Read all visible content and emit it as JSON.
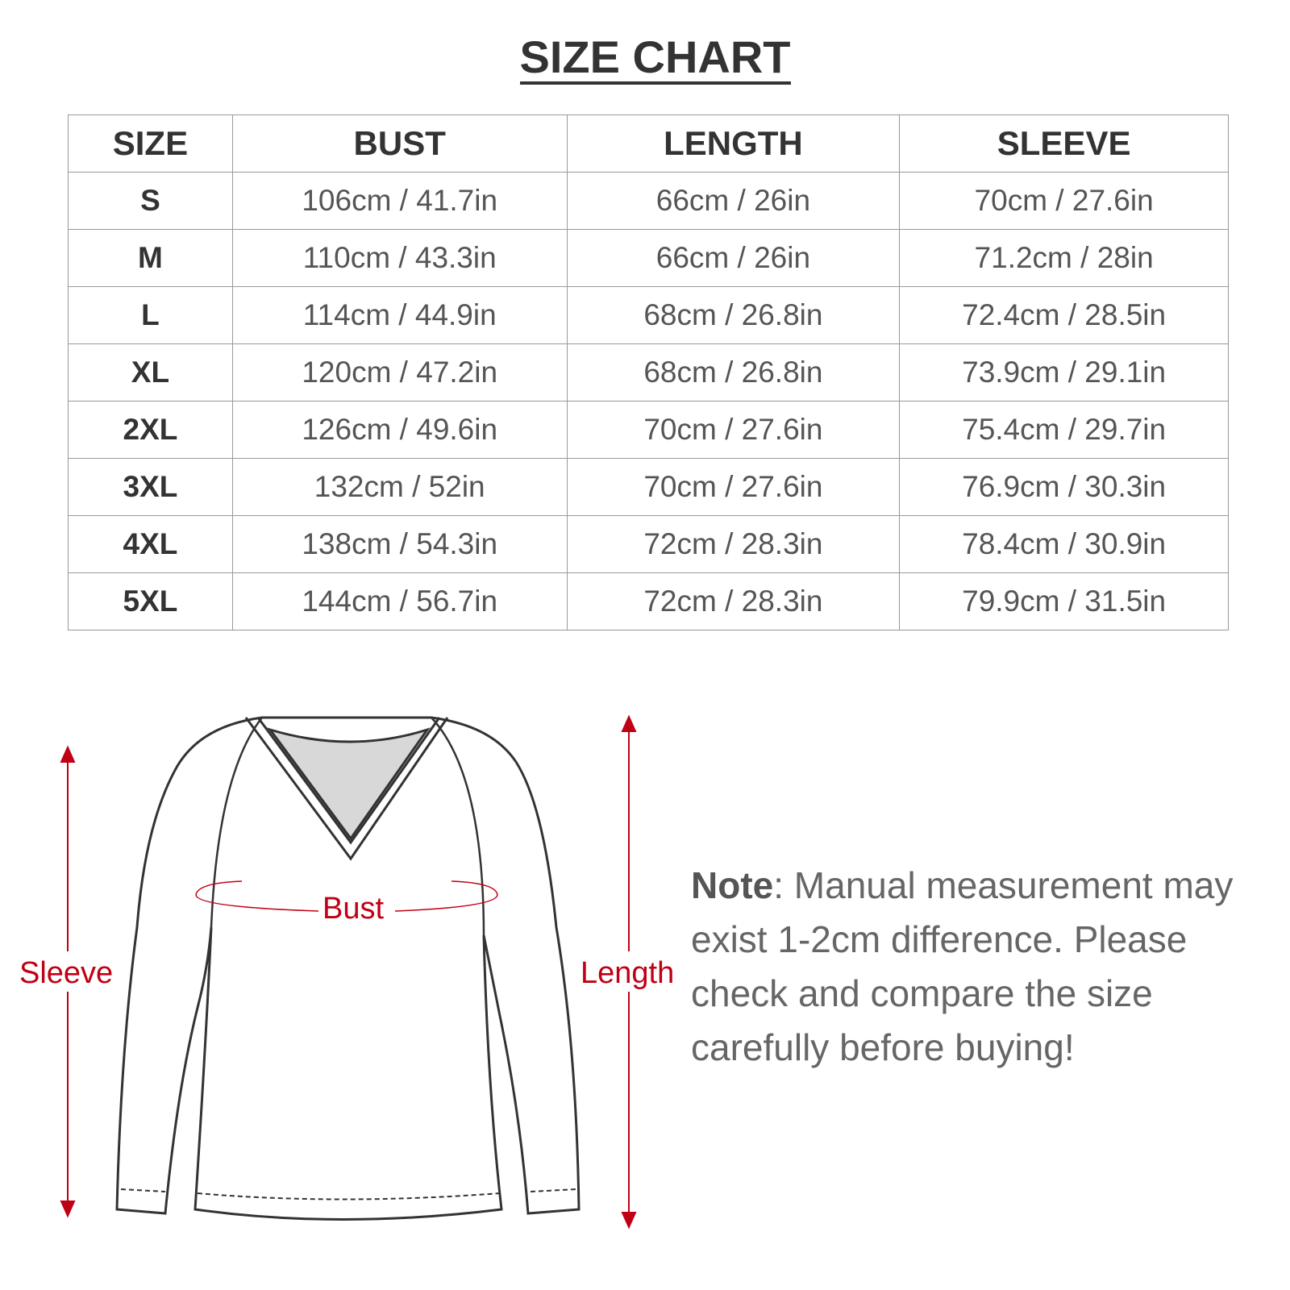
{
  "title": "SIZE CHART",
  "table": {
    "headers": [
      "SIZE",
      "BUST",
      "LENGTH",
      "SLEEVE"
    ],
    "rows": [
      [
        "S",
        "106cm / 41.7in",
        "66cm / 26in",
        "70cm / 27.6in"
      ],
      [
        "M",
        "110cm / 43.3in",
        "66cm / 26in",
        "71.2cm / 28in"
      ],
      [
        "L",
        "114cm / 44.9in",
        "68cm / 26.8in",
        "72.4cm / 28.5in"
      ],
      [
        "XL",
        "120cm / 47.2in",
        "68cm / 26.8in",
        "73.9cm / 29.1in"
      ],
      [
        "2XL",
        "126cm / 49.6in",
        "70cm / 27.6in",
        "75.4cm / 29.7in"
      ],
      [
        "3XL",
        "132cm / 52in",
        "70cm / 27.6in",
        "76.9cm / 30.3in"
      ],
      [
        "4XL",
        "138cm / 54.3in",
        "72cm / 28.3in",
        "78.4cm / 30.9in"
      ],
      [
        "5XL",
        "144cm / 56.7in",
        "72cm / 28.3in",
        "79.9cm / 31.5in"
      ]
    ]
  },
  "diagram": {
    "labels": {
      "sleeve": "Sleeve",
      "bust": "Bust",
      "length": "Length"
    },
    "accent_color": "#c00014"
  },
  "note": {
    "label": "Note",
    "text": ": Manual measurement may exist 1-2cm difference. Please check and compare the size carefully before buying!"
  }
}
